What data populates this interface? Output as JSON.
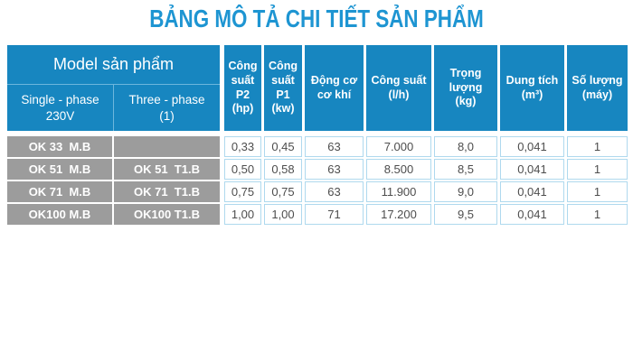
{
  "title": "BẢNG MÔ TẢ CHI TIẾT SẢN PHẨM",
  "colors": {
    "title_blue": "#1e95d2",
    "header_blue": "#1786c0",
    "header_divider_blue": "#6db6dd",
    "model_row_gray": "#9c9c9c",
    "cell_border_blue": "#afd9ee",
    "value_text_gray": "#4d4d4d"
  },
  "table": {
    "model_group_label": "Model sản phẩm",
    "model_columns": [
      {
        "label": "Single - phase\n230V"
      },
      {
        "label": "Three - phase\n(1)"
      }
    ],
    "spec_columns": [
      {
        "label": "Công\nsuất\nP2\n(hp)"
      },
      {
        "label": "Công\nsuất\nP1\n(kw)"
      },
      {
        "label": "Động cơ\ncơ khí"
      },
      {
        "label": "Công suất\n(l/h)"
      },
      {
        "label": "Trọng\nlượng\n(kg)"
      },
      {
        "label": "Dung tích\n(m³)"
      },
      {
        "label": "Số lượng\n(máy)"
      }
    ],
    "rows": [
      {
        "model_single": "OK 33  M.B",
        "model_three": "",
        "specs": [
          "0,33",
          "0,45",
          "63",
          "7.000",
          "8,0",
          "0,041",
          "1"
        ]
      },
      {
        "model_single": "OK 51  M.B",
        "model_three": "OK 51  T1.B",
        "specs": [
          "0,50",
          "0,58",
          "63",
          "8.500",
          "8,5",
          "0,041",
          "1"
        ]
      },
      {
        "model_single": "OK 71  M.B",
        "model_three": "OK 71  T1.B",
        "specs": [
          "0,75",
          "0,75",
          "63",
          "11.900",
          "9,0",
          "0,041",
          "1"
        ]
      },
      {
        "model_single": "OK100 M.B",
        "model_three": "OK100 T1.B",
        "specs": [
          "1,00",
          "1,00",
          "71",
          "17.200",
          "9,5",
          "0,041",
          "1"
        ]
      }
    ]
  }
}
